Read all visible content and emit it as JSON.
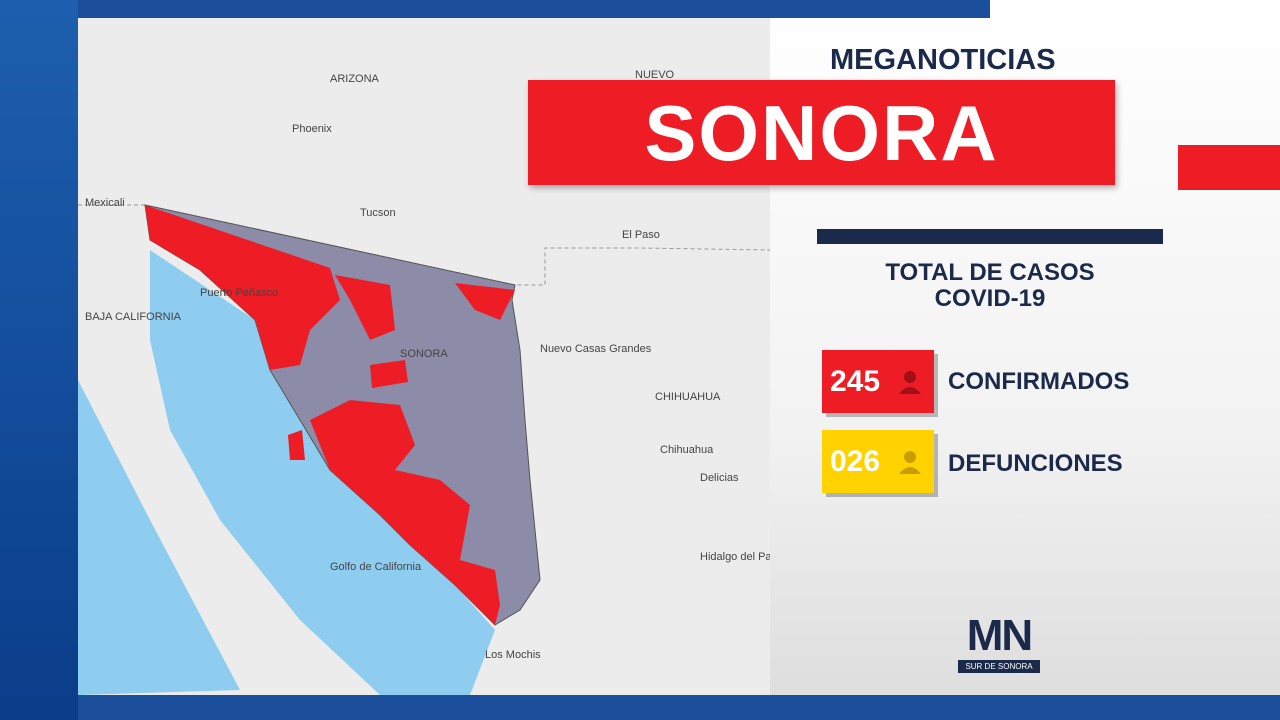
{
  "brand": "MEGANOTICIAS",
  "title": "SONORA",
  "subtitle": {
    "line1": "TOTAL DE CASOS",
    "line2": "COVID-19"
  },
  "stats": [
    {
      "value": "245",
      "label": "CONFIRMADOS"
    },
    {
      "value": "026",
      "label": "DEFUNCIONES"
    }
  ],
  "logo": {
    "mark": "MN",
    "caption": "SUR DE SONORA"
  },
  "map": {
    "labels": [
      "ARIZONA",
      "Phoenix",
      "Tucson",
      "El Paso",
      "NUEVO",
      "BAJA CALIFORNIA",
      "SONORA",
      "CHIHUAHUA",
      "Chihuahua",
      "Los Mochis",
      "Mexicali",
      "Puerto Peñasco",
      "Nuevo Casas Grandes",
      "Delicias",
      "Hidalgo del Parral",
      "Golfo de California"
    ]
  }
}
